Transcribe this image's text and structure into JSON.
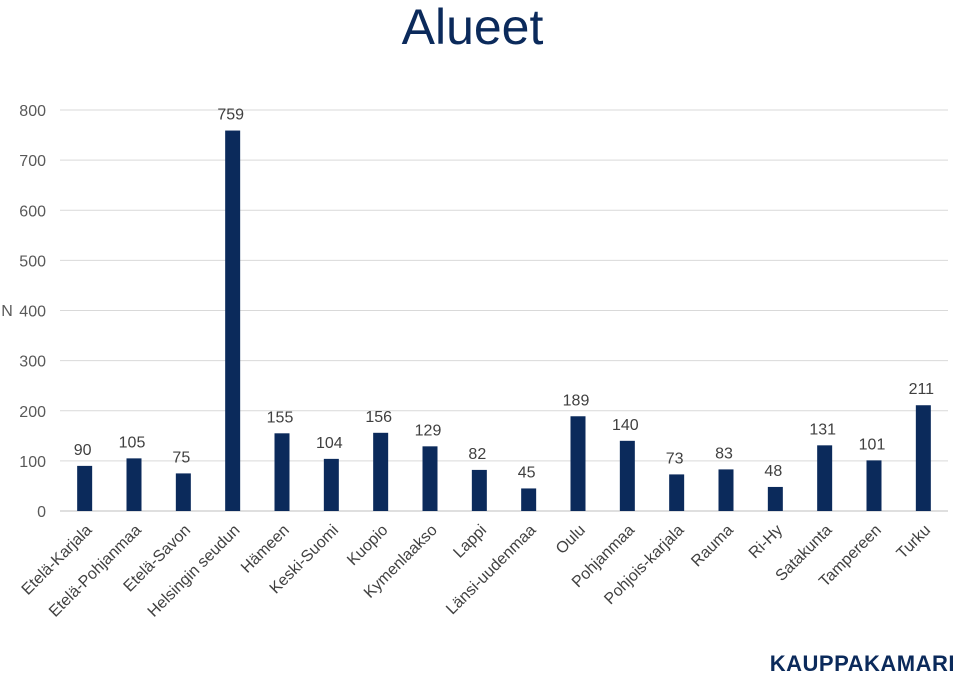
{
  "chart_data": {
    "type": "bar",
    "title": "Alueet",
    "ylabel": "N",
    "xlabel": "",
    "ylim": [
      0,
      800
    ],
    "yticks": [
      0,
      100,
      200,
      300,
      400,
      500,
      600,
      700,
      800
    ],
    "grid": true,
    "legend": "none",
    "bar_color": "#0b2a5b",
    "categories": [
      "Etelä-Karjala",
      "Etelä-Pohjanmaa",
      "Etelä-Savon",
      "Helsingin seudun",
      "Hämeen",
      "Keski-Suomi",
      "Kuopio",
      "Kymenlaakso",
      "Lappi",
      "Länsi-uudenmaa",
      "Oulu",
      "Pohjanmaa",
      "Pohjois-karjala",
      "Rauma",
      "Ri-Hy",
      "Satakunta",
      "Tampereen",
      "Turku"
    ],
    "values": [
      90,
      105,
      75,
      759,
      155,
      104,
      156,
      129,
      82,
      45,
      189,
      140,
      73,
      83,
      48,
      131,
      101,
      211
    ]
  },
  "brand": "KAUPPAKAMARI"
}
